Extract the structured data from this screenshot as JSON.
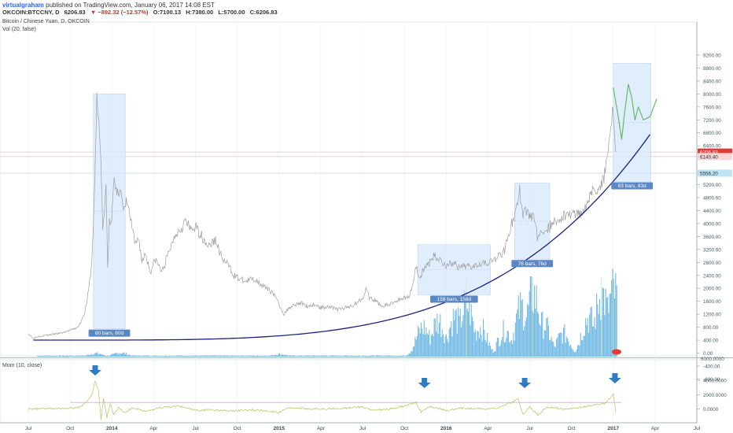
{
  "header": {
    "author": "virtualgraham",
    "published": "published on TradingView.com, January 06, 2017 14:08 EST",
    "symbol": "OKCOIN:BTCCNY, D",
    "price": "6206.83",
    "change": "▼ −892.32 (−12.57%)",
    "open": "O:7100.13",
    "high": "H:7380.00",
    "low": "L:5700.00",
    "close": "C:6206.83",
    "instrument": "Bitcoin / Chinese Yuan, D, OKCOIN",
    "volume_label": "Vol (20, false)",
    "momentum_label": "Mom (10, close)"
  },
  "colors": {
    "price_line": "#9e9e9e",
    "curve": "#1a237e",
    "box_fill": "#d6e8fb",
    "box_label": "#5b87c5",
    "volume": "#5aaedf",
    "momentum": "#b5c25b",
    "arrow": "#2f7cc2",
    "projection": "#66bb6a"
  },
  "chart_data": [
    {
      "type": "line",
      "panel": "price",
      "y_ticks": [
        "9200.00",
        "8800.00",
        "8400.00",
        "8000.00",
        "7600.00",
        "7200.00",
        "6800.00",
        "6400.00",
        "5200.00",
        "4800.00",
        "4400.00",
        "4000.00",
        "3600.00",
        "3200.00",
        "2800.00",
        "2400.00",
        "2000.00",
        "1600.00",
        "1200.00",
        "800.00",
        "400.00",
        "0.00",
        "-400.00",
        "-800.00"
      ],
      "x_ticks": [
        "Jul",
        "Oct",
        "2014",
        "Apr",
        "Jul",
        "Oct",
        "2015",
        "Apr",
        "Jul",
        "Oct",
        "2016",
        "Apr",
        "Jul",
        "Oct",
        "2017",
        "Apr",
        "Jul"
      ],
      "price_labels": [
        {
          "text": "6206.83",
          "value": 6206.83,
          "color": "#e53935"
        },
        {
          "text": "6140.40",
          "value": 6140.4,
          "color": "#f7d6d6"
        },
        {
          "text": "5556.20",
          "value": 5556.2,
          "color": "#bfe3f2"
        }
      ],
      "series": [
        {
          "points": [
            [
              2013.5,
              600
            ],
            [
              2013.53,
              450
            ],
            [
              2013.56,
              520
            ],
            [
              2013.62,
              560
            ],
            [
              2013.7,
              620
            ],
            [
              2013.76,
              720
            ],
            [
              2013.8,
              800
            ],
            [
              2013.84,
              1300
            ],
            [
              2013.86,
              1900
            ],
            [
              2013.88,
              2800
            ],
            [
              2013.895,
              4800
            ],
            [
              2013.91,
              7800
            ],
            [
              2013.93,
              6600
            ],
            [
              2013.945,
              3900
            ],
            [
              2013.955,
              4200
            ],
            [
              2013.965,
              5200
            ],
            [
              2013.975,
              2600
            ],
            [
              2013.985,
              4200
            ],
            [
              2013.995,
              3900
            ],
            [
              2014.01,
              5400
            ],
            [
              2014.03,
              4800
            ],
            [
              2014.05,
              5200
            ],
            [
              2014.07,
              4300
            ],
            [
              2014.09,
              4700
            ],
            [
              2014.12,
              3900
            ],
            [
              2014.14,
              3300
            ],
            [
              2014.16,
              3600
            ],
            [
              2014.18,
              2800
            ],
            [
              2014.2,
              3100
            ],
            [
              2014.23,
              2500
            ],
            [
              2014.26,
              2900
            ],
            [
              2014.3,
              2500
            ],
            [
              2014.34,
              3100
            ],
            [
              2014.38,
              3700
            ],
            [
              2014.42,
              3900
            ],
            [
              2014.44,
              4100
            ],
            [
              2014.47,
              3800
            ],
            [
              2014.5,
              3900
            ],
            [
              2014.54,
              3600
            ],
            [
              2014.58,
              3300
            ],
            [
              2014.62,
              3500
            ],
            [
              2014.66,
              2900
            ],
            [
              2014.7,
              2700
            ],
            [
              2014.73,
              2400
            ],
            [
              2014.76,
              2300
            ],
            [
              2014.8,
              2200
            ],
            [
              2014.84,
              2300
            ],
            [
              2014.88,
              2200
            ],
            [
              2014.92,
              2000
            ],
            [
              2014.96,
              1900
            ],
            [
              2015.0,
              1500
            ],
            [
              2015.03,
              1200
            ],
            [
              2015.06,
              1400
            ],
            [
              2015.09,
              1500
            ],
            [
              2015.13,
              1550
            ],
            [
              2015.17,
              1450
            ],
            [
              2015.21,
              1500
            ],
            [
              2015.25,
              1400
            ],
            [
              2015.3,
              1450
            ],
            [
              2015.35,
              1350
            ],
            [
              2015.4,
              1400
            ],
            [
              2015.45,
              1500
            ],
            [
              2015.5,
              1700
            ],
            [
              2015.52,
              2000
            ],
            [
              2015.54,
              1700
            ],
            [
              2015.58,
              1600
            ],
            [
              2015.62,
              1450
            ],
            [
              2015.66,
              1500
            ],
            [
              2015.7,
              1600
            ],
            [
              2015.74,
              1700
            ],
            [
              2015.78,
              1750
            ],
            [
              2015.8,
              2100
            ],
            [
              2015.82,
              2700
            ],
            [
              2015.84,
              2300
            ],
            [
              2015.87,
              2600
            ],
            [
              2015.9,
              2800
            ],
            [
              2015.93,
              3000
            ],
            [
              2015.96,
              2900
            ],
            [
              2016.0,
              2700
            ],
            [
              2016.04,
              2800
            ],
            [
              2016.08,
              2600
            ],
            [
              2016.12,
              2700
            ],
            [
              2016.16,
              2700
            ],
            [
              2016.2,
              2800
            ],
            [
              2016.25,
              2800
            ],
            [
              2016.3,
              2900
            ],
            [
              2016.35,
              3200
            ],
            [
              2016.38,
              3800
            ],
            [
              2016.42,
              4400
            ],
            [
              2016.44,
              5000
            ],
            [
              2016.46,
              4300
            ],
            [
              2016.48,
              4400
            ],
            [
              2016.5,
              4200
            ],
            [
              2016.52,
              4300
            ],
            [
              2016.55,
              3500
            ],
            [
              2016.58,
              3800
            ],
            [
              2016.62,
              3900
            ],
            [
              2016.66,
              4100
            ],
            [
              2016.7,
              4200
            ],
            [
              2016.74,
              4300
            ],
            [
              2016.78,
              4300
            ],
            [
              2016.82,
              4400
            ],
            [
              2016.86,
              4900
            ],
            [
              2016.9,
              5100
            ],
            [
              2016.94,
              5300
            ],
            [
              2016.97,
              6400
            ],
            [
              2016.985,
              7000
            ],
            [
              2016.995,
              7400
            ],
            [
              2017.005,
              7100
            ],
            [
              2017.015,
              6206.83
            ]
          ]
        }
      ],
      "annotations": [
        {
          "type": "date-range",
          "x0": 2013.89,
          "x1": 2014.08,
          "y0": 750,
          "y1": 8000,
          "text": "80 bars, 80d"
        },
        {
          "type": "date-range",
          "x0": 2015.83,
          "x1": 2016.265,
          "y0": 1800,
          "y1": 3350,
          "text": "158 bars, 158d"
        },
        {
          "type": "date-range",
          "x0": 2016.41,
          "x1": 2016.62,
          "y0": 2900,
          "y1": 5250,
          "text": "76 bars, 76d"
        },
        {
          "type": "date-range",
          "x0": 2017.0,
          "x1": 2017.225,
          "y0": 5300,
          "y1": 8950,
          "text": "83 bars, 83d"
        }
      ],
      "curve": {
        "from": [
          2013.53,
          400
        ],
        "to": [
          2017.22,
          6750
        ]
      },
      "projection": [
        [
          2017.0,
          8200
        ],
        [
          2017.03,
          7300
        ],
        [
          2017.05,
          6600
        ],
        [
          2017.07,
          7500
        ],
        [
          2017.09,
          8300
        ],
        [
          2017.11,
          7900
        ],
        [
          2017.13,
          7200
        ],
        [
          2017.15,
          7600
        ],
        [
          2017.18,
          7200
        ],
        [
          2017.22,
          7300
        ],
        [
          2017.26,
          7850
        ]
      ]
    },
    {
      "type": "bar",
      "panel": "volume",
      "name": "Vol (20, false)",
      "x_range": [
        2013.55,
        2017.02
      ],
      "peaks": [
        [
          2013.9,
          0.05
        ],
        [
          2014.05,
          0.06
        ],
        [
          2015.0,
          0.04
        ],
        [
          2015.86,
          0.45
        ],
        [
          2015.95,
          0.55
        ],
        [
          2016.05,
          0.6
        ],
        [
          2016.12,
          0.8
        ],
        [
          2016.2,
          0.45
        ],
        [
          2016.35,
          0.4
        ],
        [
          2016.45,
          0.75
        ],
        [
          2016.52,
          0.95
        ],
        [
          2016.58,
          0.5
        ],
        [
          2016.7,
          0.35
        ],
        [
          2016.85,
          0.6
        ],
        [
          2016.93,
          0.95
        ],
        [
          2017.0,
          1.0
        ]
      ]
    },
    {
      "type": "line",
      "panel": "momentum",
      "name": "Mom (10, close)",
      "y_ticks": [
        "6000.0000",
        "4000.0000",
        "2000.0000",
        "0.0000"
      ],
      "series": [
        {
          "points": [
            [
              2013.5,
              0
            ],
            [
              2013.7,
              60
            ],
            [
              2013.8,
              150
            ],
            [
              2013.84,
              800
            ],
            [
              2013.88,
              2000
            ],
            [
              2013.9,
              3900
            ],
            [
              2013.92,
              2500
            ],
            [
              2013.935,
              -1500
            ],
            [
              2013.95,
              1400
            ],
            [
              2013.97,
              -1200
            ],
            [
              2013.99,
              800
            ],
            [
              2014.01,
              -900
            ],
            [
              2014.04,
              300
            ],
            [
              2014.08,
              -600
            ],
            [
              2014.12,
              200
            ],
            [
              2014.2,
              -300
            ],
            [
              2014.3,
              200
            ],
            [
              2014.4,
              400
            ],
            [
              2014.5,
              -200
            ],
            [
              2014.6,
              -100
            ],
            [
              2014.7,
              -300
            ],
            [
              2014.8,
              -100
            ],
            [
              2014.9,
              -200
            ],
            [
              2015.0,
              -500
            ],
            [
              2015.05,
              200
            ],
            [
              2015.2,
              0
            ],
            [
              2015.4,
              100
            ],
            [
              2015.5,
              300
            ],
            [
              2015.55,
              -200
            ],
            [
              2015.7,
              100
            ],
            [
              2015.82,
              900
            ],
            [
              2015.85,
              -400
            ],
            [
              2015.9,
              400
            ],
            [
              2016.0,
              -200
            ],
            [
              2016.1,
              100
            ],
            [
              2016.2,
              0
            ],
            [
              2016.3,
              100
            ],
            [
              2016.4,
              1000
            ],
            [
              2016.43,
              1500
            ],
            [
              2016.46,
              -800
            ],
            [
              2016.5,
              300
            ],
            [
              2016.55,
              -900
            ],
            [
              2016.6,
              300
            ],
            [
              2016.7,
              0
            ],
            [
              2016.8,
              200
            ],
            [
              2016.9,
              600
            ],
            [
              2016.95,
              800
            ],
            [
              2016.98,
              1500
            ],
            [
              2017.0,
              2100
            ],
            [
              2017.01,
              500
            ],
            [
              2017.015,
              -1400
            ]
          ]
        }
      ],
      "reference_line": 900,
      "arrows": [
        2013.9,
        2015.87,
        2016.47,
        2017.01
      ]
    }
  ]
}
